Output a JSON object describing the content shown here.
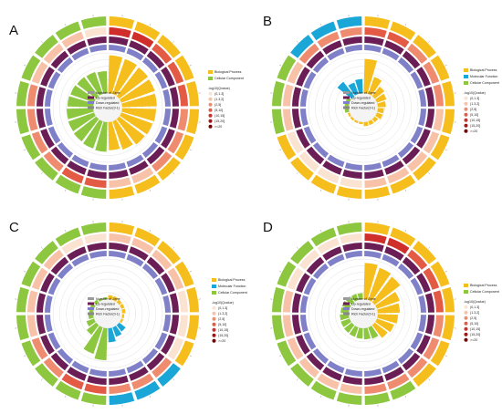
{
  "colors": {
    "bp": "#F5BE1C",
    "mf": "#1AA7D8",
    "cc": "#8DC63F",
    "up": "#6B1E55",
    "down": "#8080C8",
    "rich": "#888888",
    "grid": "#E2E2E2",
    "heat": [
      "#FBE3D2",
      "#F7C2A8",
      "#EF8C70",
      "#E35A45",
      "#CF2E2A",
      "#A81414",
      "#7A0000"
    ]
  },
  "legend": {
    "categories": {
      "bp": "Biological Process",
      "mf": "Molecular Function",
      "cc": "Cellular Component"
    },
    "number_of_gene": "Number of Gene",
    "up": "Up-regulated",
    "down": "Down-regulated",
    "rich": "Rich Factor(0-1)",
    "qvalue_title": "-log10(Qvalue)",
    "qvalue_bins": [
      "(0,1.3]",
      "(1.3,2]",
      "(2,5]",
      "(5,10]",
      "(10,15]",
      "(15,20]",
      ">=20"
    ]
  },
  "chart_data": [
    {
      "panel": "A",
      "type": "circular_enrichment",
      "legend_categories": [
        "bp",
        "cc"
      ],
      "term_categories": [
        "bp",
        "bp",
        "bp",
        "bp",
        "bp",
        "bp",
        "bp",
        "bp",
        "bp",
        "bp",
        "cc",
        "cc",
        "cc",
        "cc",
        "cc",
        "cc",
        "cc",
        "cc",
        "cc",
        "cc"
      ],
      "rich_factor": [
        0.94,
        0.92,
        0.9,
        0.88,
        0.86,
        0.84,
        0.82,
        0.8,
        0.75,
        0.7,
        0.74,
        0.72,
        0.7,
        0.68,
        0.66,
        0.64,
        0.62,
        0.6,
        0.58,
        0.55
      ],
      "neglog10q_bin": [
        4,
        4,
        3,
        3,
        3,
        2,
        2,
        2,
        1,
        1,
        3,
        3,
        2,
        2,
        2,
        2,
        1,
        1,
        1,
        0
      ]
    },
    {
      "panel": "B",
      "type": "circular_enrichment",
      "legend_categories": [
        "bp",
        "mf",
        "cc"
      ],
      "term_categories": [
        "bp",
        "bp",
        "bp",
        "bp",
        "bp",
        "bp",
        "bp",
        "bp",
        "bp",
        "bp",
        "bp",
        "bp",
        "bp",
        "bp",
        "cc",
        "cc",
        "cc",
        "mf",
        "mf",
        "mf"
      ],
      "rich_factor": [
        0.85,
        0.45,
        0.3,
        0.25,
        0.2,
        0.15,
        0.15,
        0.1,
        0.1,
        0.1,
        0.05,
        0.05,
        0.05,
        0.05,
        0.1,
        0.1,
        0.1,
        0.45,
        0.3,
        0.35
      ],
      "neglog10q_bin": [
        3,
        3,
        2,
        2,
        2,
        1,
        1,
        1,
        1,
        1,
        0,
        0,
        0,
        0,
        1,
        1,
        1,
        2,
        2,
        2
      ]
    },
    {
      "panel": "C",
      "type": "circular_enrichment",
      "legend_categories": [
        "bp",
        "mf",
        "cc"
      ],
      "term_categories": [
        "bp",
        "bp",
        "bp",
        "bp",
        "bp",
        "bp",
        "bp",
        "mf",
        "mf",
        "mf",
        "cc",
        "cc",
        "cc",
        "cc",
        "cc",
        "cc",
        "cc",
        "cc",
        "cc",
        "cc"
      ],
      "rich_factor": [
        0.1,
        0.1,
        0.08,
        0.08,
        0.08,
        0.05,
        0.05,
        0.2,
        0.25,
        0.35,
        0.8,
        0.7,
        0.3,
        0.2,
        0.12,
        0.1,
        0.1,
        0.08,
        0.05,
        0.05
      ],
      "neglog10q_bin": [
        1,
        1,
        1,
        1,
        0,
        0,
        0,
        2,
        2,
        2,
        3,
        3,
        2,
        2,
        1,
        1,
        1,
        1,
        0,
        0
      ]
    },
    {
      "panel": "D",
      "type": "circular_enrichment",
      "legend_categories": [
        "bp",
        "cc"
      ],
      "term_categories": [
        "bp",
        "bp",
        "bp",
        "bp",
        "bp",
        "bp",
        "bp",
        "bp",
        "cc",
        "cc",
        "cc",
        "cc",
        "cc",
        "cc",
        "cc",
        "cc",
        "cc",
        "cc",
        "cc",
        "cc"
      ],
      "rich_factor": [
        0.9,
        0.85,
        0.8,
        0.6,
        0.55,
        0.5,
        0.45,
        0.4,
        0.3,
        0.28,
        0.26,
        0.25,
        0.24,
        0.23,
        0.22,
        0.2,
        0.2,
        0.18,
        0.16,
        0.15
      ],
      "neglog10q_bin": [
        4,
        4,
        3,
        3,
        3,
        2,
        2,
        2,
        2,
        2,
        1,
        1,
        1,
        1,
        1,
        1,
        0,
        0,
        0,
        0
      ]
    }
  ]
}
